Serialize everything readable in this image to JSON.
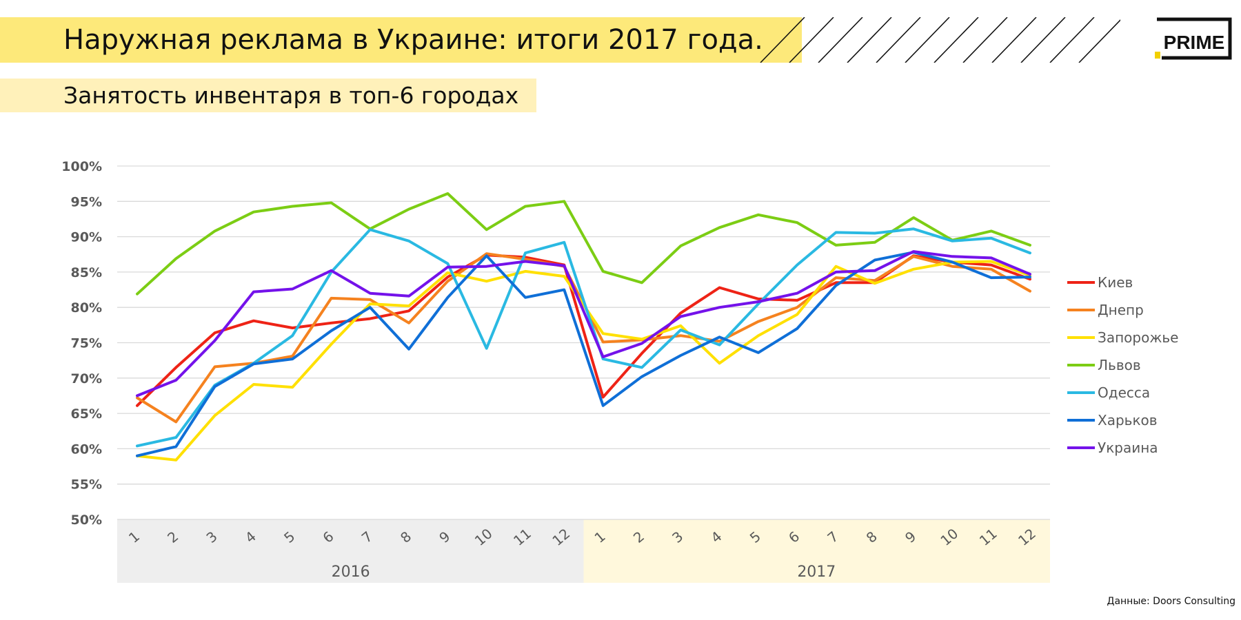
{
  "header": {
    "title": "Наружная реклама в Украине: итоги 2017 года.",
    "subtitle": "Занятость инвентаря в  топ-6 городах",
    "logo_text": "PRIME",
    "source": "Данные: Doors Consulting"
  },
  "colors": {
    "title_band": "#fde97a",
    "subtitle_band": "#fff1ba",
    "year_2016_band": "#eeeeee",
    "year_2017_band": "#fff8dc"
  },
  "chart_data": {
    "type": "line",
    "title": "",
    "xlabel": "",
    "ylabel": "",
    "ylim": [
      0.5,
      1.0
    ],
    "y_ticks": [
      "50%",
      "55%",
      "60%",
      "65%",
      "70%",
      "75%",
      "80%",
      "85%",
      "90%",
      "95%",
      "100%"
    ],
    "grid": true,
    "legend_position": "right",
    "categories": [
      "1",
      "2",
      "3",
      "4",
      "5",
      "6",
      "7",
      "8",
      "9",
      "10",
      "11",
      "12",
      "1",
      "2",
      "3",
      "4",
      "5",
      "6",
      "7",
      "8",
      "9",
      "10",
      "11",
      "12"
    ],
    "groups": [
      {
        "label": "2016",
        "months": 12
      },
      {
        "label": "2017",
        "months": 12
      }
    ],
    "series": [
      {
        "name": "Киев",
        "color": "#ee2316",
        "values": [
          0.661,
          0.715,
          0.764,
          0.781,
          0.771,
          0.778,
          0.784,
          0.795,
          0.843,
          0.874,
          0.871,
          0.86,
          0.673,
          0.735,
          0.792,
          0.828,
          0.812,
          0.81,
          0.835,
          0.835,
          0.873,
          0.864,
          0.86,
          0.84
        ]
      },
      {
        "name": "Днепр",
        "color": "#f5821f",
        "values": [
          0.672,
          0.638,
          0.716,
          0.721,
          0.731,
          0.813,
          0.811,
          0.778,
          0.837,
          0.876,
          0.868,
          0.858,
          0.751,
          0.754,
          0.76,
          0.752,
          0.78,
          0.8,
          0.842,
          0.838,
          0.872,
          0.858,
          0.854,
          0.823
        ]
      },
      {
        "name": "Запорожье",
        "color": "#ffe000",
        "values": [
          0.59,
          0.584,
          0.647,
          0.691,
          0.687,
          0.748,
          0.805,
          0.802,
          0.849,
          0.837,
          0.851,
          0.844,
          0.763,
          0.755,
          0.774,
          0.721,
          0.76,
          0.79,
          0.858,
          0.834,
          0.854,
          0.864,
          0.865,
          0.845
        ]
      },
      {
        "name": "Львов",
        "color": "#7ccd14",
        "values": [
          0.819,
          0.869,
          0.908,
          0.935,
          0.943,
          0.948,
          0.911,
          0.939,
          0.961,
          0.91,
          0.943,
          0.95,
          0.851,
          0.835,
          0.887,
          0.913,
          0.931,
          0.92,
          0.888,
          0.892,
          0.927,
          0.895,
          0.908,
          0.888
        ]
      },
      {
        "name": "Одесса",
        "color": "#2ab9e2",
        "values": [
          0.604,
          0.616,
          0.69,
          0.721,
          0.76,
          0.85,
          0.91,
          0.894,
          0.862,
          0.742,
          0.877,
          0.892,
          0.727,
          0.715,
          0.768,
          0.747,
          0.805,
          0.86,
          0.906,
          0.905,
          0.911,
          0.894,
          0.898,
          0.877
        ]
      },
      {
        "name": "Харьков",
        "color": "#0f6fd7",
        "values": [
          0.59,
          0.603,
          0.688,
          0.72,
          0.727,
          0.767,
          0.8,
          0.741,
          0.814,
          0.873,
          0.814,
          0.825,
          0.661,
          0.702,
          0.732,
          0.758,
          0.736,
          0.77,
          0.831,
          0.867,
          0.878,
          0.864,
          0.842,
          0.843
        ]
      },
      {
        "name": "Украина",
        "color": "#7412ea",
        "values": [
          0.675,
          0.697,
          0.753,
          0.822,
          0.826,
          0.852,
          0.82,
          0.816,
          0.857,
          0.858,
          0.865,
          0.859,
          0.73,
          0.749,
          0.787,
          0.8,
          0.808,
          0.82,
          0.85,
          0.852,
          0.879,
          0.872,
          0.87,
          0.847
        ]
      }
    ]
  }
}
